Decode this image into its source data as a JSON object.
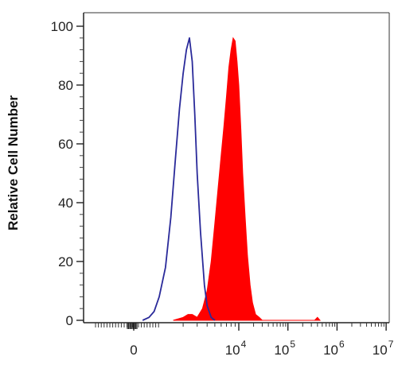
{
  "chart_data": {
    "type": "area",
    "title": "",
    "xlabel": "",
    "ylabel": "Relative Cell Number",
    "ylim": [
      0,
      100
    ],
    "yticks": [
      0,
      20,
      40,
      60,
      80,
      100
    ],
    "xscale": "biexponential",
    "xticks": [
      {
        "x": 0,
        "base": "0",
        "exp": ""
      },
      {
        "x": 10000,
        "base": "10",
        "exp": "4"
      },
      {
        "x": 100000,
        "base": "10",
        "exp": "5"
      },
      {
        "x": 1000000,
        "base": "10",
        "exp": "6"
      },
      {
        "x": 10000000,
        "base": "10",
        "exp": "7"
      }
    ],
    "grid": false,
    "series": [
      {
        "color": "#ff0000",
        "fill": true,
        "points": [
          [
            1500,
            0
          ],
          [
            2000,
            1
          ],
          [
            2300,
            2
          ],
          [
            2600,
            2
          ],
          [
            3000,
            1
          ],
          [
            3500,
            4
          ],
          [
            4000,
            10
          ],
          [
            4500,
            20
          ],
          [
            5000,
            33
          ],
          [
            5500,
            45
          ],
          [
            6000,
            56
          ],
          [
            6500,
            66
          ],
          [
            7000,
            76
          ],
          [
            7500,
            86
          ],
          [
            8000,
            92
          ],
          [
            8500,
            96
          ],
          [
            9000,
            95
          ],
          [
            9500,
            88
          ],
          [
            10000,
            80
          ],
          [
            11000,
            65
          ],
          [
            12000,
            50
          ],
          [
            13500,
            35
          ],
          [
            15000,
            22
          ],
          [
            17000,
            12
          ],
          [
            19000,
            6
          ],
          [
            22000,
            2
          ],
          [
            26000,
            1
          ],
          [
            30000,
            0
          ],
          [
            350000,
            0
          ],
          [
            400000,
            1
          ],
          [
            450000,
            0
          ]
        ]
      },
      {
        "color": "#2a2a9a",
        "fill": false,
        "points": [
          [
            350,
            0
          ],
          [
            600,
            1
          ],
          [
            800,
            3
          ],
          [
            1000,
            8
          ],
          [
            1200,
            18
          ],
          [
            1400,
            35
          ],
          [
            1600,
            55
          ],
          [
            1800,
            72
          ],
          [
            2000,
            84
          ],
          [
            2200,
            92
          ],
          [
            2400,
            96
          ],
          [
            2600,
            88
          ],
          [
            2800,
            70
          ],
          [
            3000,
            50
          ],
          [
            3300,
            30
          ],
          [
            3700,
            12
          ],
          [
            4000,
            5
          ],
          [
            4500,
            1
          ],
          [
            5000,
            0
          ]
        ]
      }
    ]
  }
}
